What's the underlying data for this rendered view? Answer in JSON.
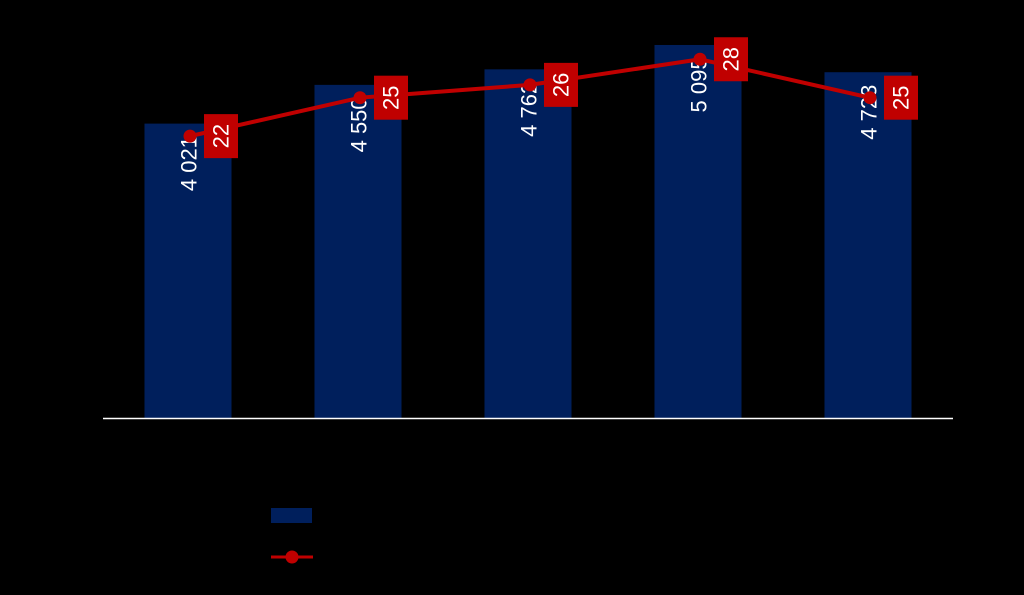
{
  "chart_data": {
    "type": "bar",
    "categories": [
      "",
      "",
      "",
      "",
      ""
    ],
    "series": [
      {
        "type": "bar",
        "axis": "left",
        "values": [
          4021,
          4550,
          4762,
          5095,
          4723
        ],
        "labels": [
          "4 021",
          "4 550",
          "4 762",
          "5 095",
          "4 723"
        ],
        "color": "#001f5c"
      },
      {
        "type": "line",
        "axis": "right",
        "values": [
          22,
          25,
          26,
          28,
          25
        ],
        "labels": [
          "22",
          "25",
          "26",
          "28",
          "25"
        ],
        "color": "#c00000",
        "marker": "circle"
      }
    ],
    "left_axis_range": [
      0,
      5600
    ],
    "right_axis_range": [
      0,
      32
    ],
    "grid": false,
    "legend_position": "bottom",
    "colors": {
      "background": "#000000",
      "baseline": "#ffffff",
      "label_text": "#ffffff"
    }
  }
}
